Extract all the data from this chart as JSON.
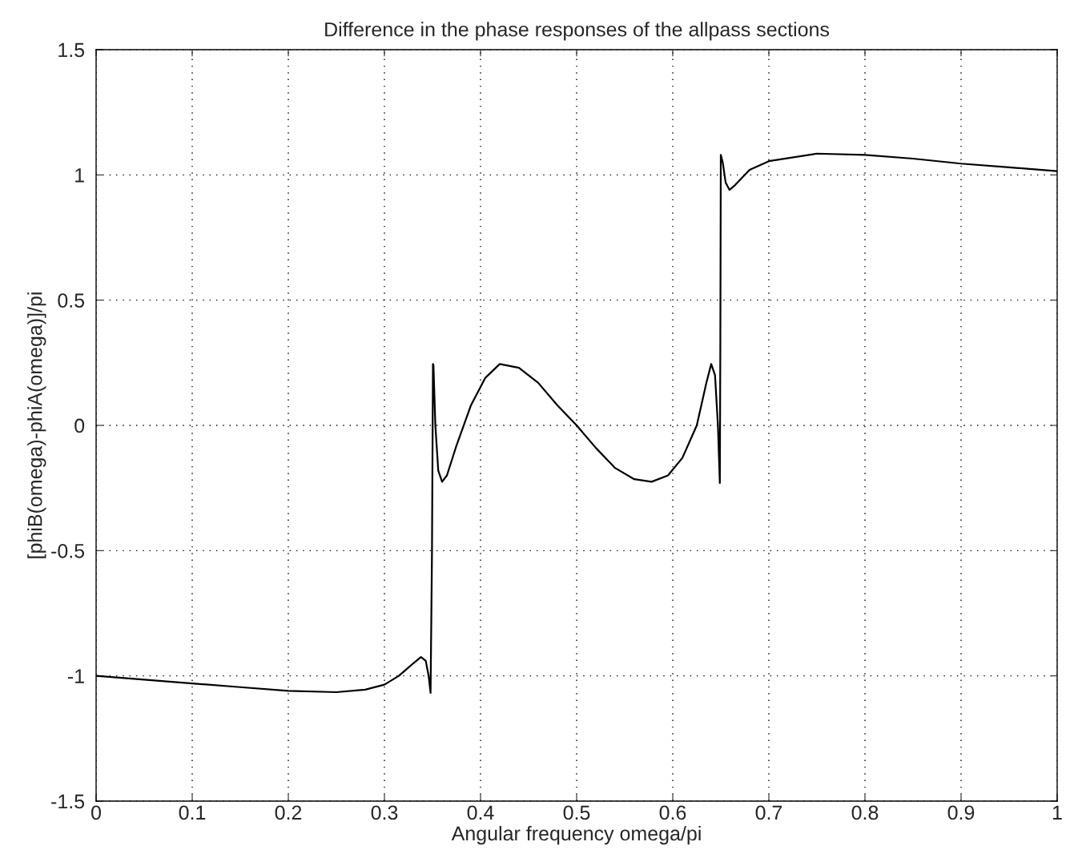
{
  "chart_data": {
    "type": "line",
    "title": "Difference in the phase responses of the allpass sections",
    "xlabel": "Angular frequency omega/pi",
    "ylabel": "[phiB(omega)-phiA(omega)]/pi",
    "series": [
      {
        "color": "#000000",
        "x": [
          0,
          0.05,
          0.1,
          0.15,
          0.2,
          0.25,
          0.28,
          0.3,
          0.315,
          0.33,
          0.338,
          0.343,
          0.346,
          0.348,
          0.3495,
          0.3505,
          0.351,
          0.353,
          0.356,
          0.36,
          0.365,
          0.375,
          0.39,
          0.405,
          0.42,
          0.44,
          0.46,
          0.48,
          0.5,
          0.52,
          0.54,
          0.56,
          0.578,
          0.595,
          0.61,
          0.625,
          0.635,
          0.64,
          0.644,
          0.647,
          0.649,
          0.6495,
          0.65,
          0.652,
          0.655,
          0.659,
          0.665,
          0.68,
          0.7,
          0.75,
          0.8,
          0.85,
          0.9,
          0.95,
          1.0
        ],
        "values": [
          -1.0,
          -1.015,
          -1.03,
          -1.045,
          -1.06,
          -1.065,
          -1.055,
          -1.035,
          -1.0,
          -0.95,
          -0.925,
          -0.94,
          -1.0,
          -1.068,
          -0.5,
          0.245,
          0.24,
          0.0,
          -0.18,
          -0.225,
          -0.2,
          -0.08,
          0.08,
          0.19,
          0.245,
          0.23,
          0.17,
          0.08,
          0.0,
          -0.09,
          -0.17,
          -0.215,
          -0.225,
          -0.2,
          -0.13,
          0.0,
          0.17,
          0.245,
          0.2,
          0.0,
          -0.23,
          0.3,
          1.08,
          1.05,
          0.97,
          0.94,
          0.96,
          1.02,
          1.055,
          1.085,
          1.08,
          1.065,
          1.045,
          1.03,
          1.015
        ]
      }
    ],
    "xlim": [
      0,
      1
    ],
    "xticks": [
      0,
      0.1,
      0.2,
      0.3,
      0.4,
      0.5,
      0.6,
      0.7,
      0.8,
      0.9,
      1
    ],
    "ylim": [
      -1.5,
      1.5
    ],
    "yticks": [
      -1.5,
      -1,
      -0.5,
      0,
      0.5,
      1,
      1.5
    ],
    "grid": true,
    "line_style": "solid",
    "marker": "none",
    "legend": false
  }
}
